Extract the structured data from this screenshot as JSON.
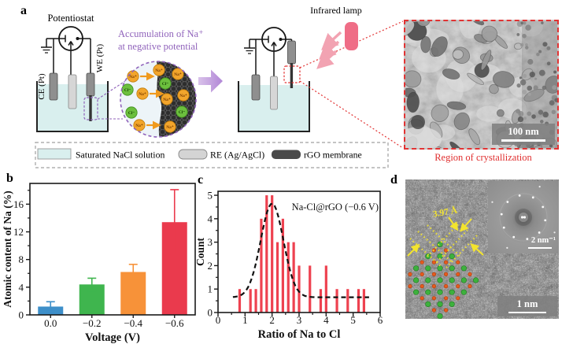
{
  "a": {
    "label": "a",
    "potentiostat": "Potentiostat",
    "ce": "CE (Pt)",
    "we": "WE (Pt)",
    "accumulation_line1": "Accumulation of Na⁺",
    "accumulation_line2": "at negative potential",
    "infrared_lamp": "Infrared lamp",
    "na_ion": "Na⁺",
    "cl_ion": "Cl⁻",
    "tem_scale": "100 nm",
    "region_caption": "Region of crystallization",
    "legend": [
      {
        "label": "Saturated NaCl solution",
        "swatch": "#d9efee"
      },
      {
        "label": "RE (Ag/AgCl)",
        "swatch": "#d4d4d4"
      },
      {
        "label": "rGO membrane",
        "swatch": "#4a4a4a"
      }
    ],
    "colors": {
      "purple": "#9063bb",
      "lamp_pink": "#ef6d86",
      "solution": "#d9efee",
      "na_orange": "#f2a52c",
      "cl_green": "#6cbf3e",
      "dashed_red": "#e23333"
    }
  },
  "d": {
    "label": "d",
    "spacing_annotation": "3.97 Å",
    "fft_scale": "2 nm⁻¹",
    "scale_bar": "1 nm"
  },
  "chart_data": [
    {
      "id": "b",
      "panel_label": "b",
      "type": "bar",
      "categories": [
        "0.0",
        "−0.2",
        "−0.4",
        "−0.6"
      ],
      "values": [
        1.2,
        4.4,
        6.2,
        13.4
      ],
      "errors_plus": [
        0.7,
        0.9,
        1.1,
        4.7
      ],
      "bar_colors": [
        "#3d8fc9",
        "#3fb54e",
        "#f79239",
        "#ea3a4d"
      ],
      "xlabel": "Voltage (V)",
      "ylabel": "Atomic content of Na (%)",
      "yticks": [
        0,
        4,
        8,
        12,
        16
      ],
      "ylim": [
        0,
        19
      ],
      "grid": false,
      "frame": "box",
      "legend_position": "none"
    },
    {
      "id": "c",
      "panel_label": "c",
      "type": "bar",
      "subtype": "histogram-thin-bars",
      "x": [
        0.8,
        1.2,
        1.4,
        1.6,
        1.8,
        2.0,
        2.2,
        2.4,
        2.6,
        2.8,
        3.0,
        3.4,
        3.8,
        4.0,
        4.4,
        4.8,
        5.2,
        5.4
      ],
      "counts": [
        1,
        1,
        1,
        4,
        5,
        5,
        3,
        4,
        3,
        3,
        2,
        2,
        1,
        2,
        1,
        1,
        1,
        1
      ],
      "bar_color": "#ee4250",
      "annotation": "Na-Cl@rGO (−0.6 V)",
      "fit_curve": {
        "shape": "gaussian",
        "baseline": 0.65,
        "amplitude": 4.0,
        "mean": 2.0,
        "sigma": 0.42,
        "style": "dashed",
        "color": "#111111"
      },
      "xlabel": "Ratio of Na to Cl",
      "ylabel": "Count",
      "xticks": [
        0,
        1,
        2,
        3,
        4,
        5,
        6
      ],
      "yticks": [
        0,
        1,
        2,
        3,
        4,
        5
      ],
      "xlim": [
        0,
        6
      ],
      "ylim": [
        0,
        5.17
      ],
      "grid": false,
      "frame": "box"
    }
  ]
}
